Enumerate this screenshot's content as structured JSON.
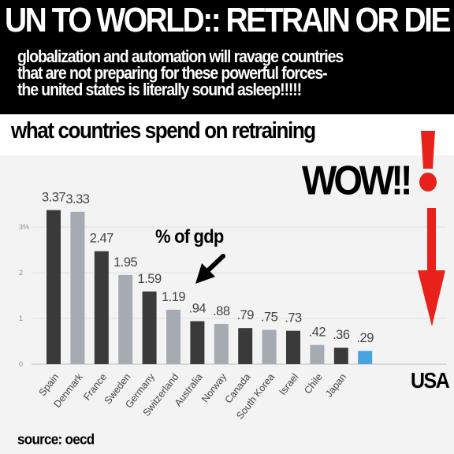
{
  "header": {
    "headline": "UN TO WORLD:: RETRAIN OR DIE",
    "subtitle_lines": [
      "globalization and automation will ravage countries",
      "that are not preparing for these powerful forces-",
      "the united states is literally sound asleep!!!!!"
    ]
  },
  "annotations": {
    "wow": "WOW!!",
    "pct_of_gdp": "% of gdp",
    "usa": "USA",
    "source": "source: oecd"
  },
  "colors": {
    "banner": "#000000",
    "dark_bar": "#3a3a3a",
    "light_bar": "#a4abb3",
    "highlight_bar": "#4aa3df",
    "arrow": "#e8221b"
  },
  "chart_data": {
    "type": "bar",
    "title": "what countries spend on retraining",
    "xlabel": "",
    "ylabel": "",
    "categories": [
      "Spain",
      "Denmark",
      "France",
      "Sweden",
      "Germany",
      "Switzerland",
      "Australia",
      "Norway",
      "Canada",
      "South Korea",
      "Israel",
      "Chile",
      "Japan",
      "USA"
    ],
    "values": [
      3.37,
      3.33,
      2.47,
      1.95,
      1.59,
      1.19,
      0.94,
      0.88,
      0.79,
      0.75,
      0.73,
      0.42,
      0.36,
      0.29
    ],
    "value_labels": [
      "3.37",
      "3.33",
      "2.47",
      "1.95",
      "1.59",
      "1.19",
      ".94",
      ".88",
      ".79",
      ".75",
      ".73",
      ".42",
      ".36",
      ".29"
    ],
    "bar_shades": [
      "dark",
      "light",
      "dark",
      "light",
      "dark",
      "light",
      "dark",
      "light",
      "dark",
      "light",
      "dark",
      "light",
      "dark",
      "highlight"
    ],
    "yticks": [
      0,
      1,
      2,
      3
    ],
    "ytick_labels": [
      "0",
      "1",
      "2",
      "3%"
    ],
    "ylim": [
      0,
      3.6
    ],
    "grid": true,
    "legend": "none"
  }
}
